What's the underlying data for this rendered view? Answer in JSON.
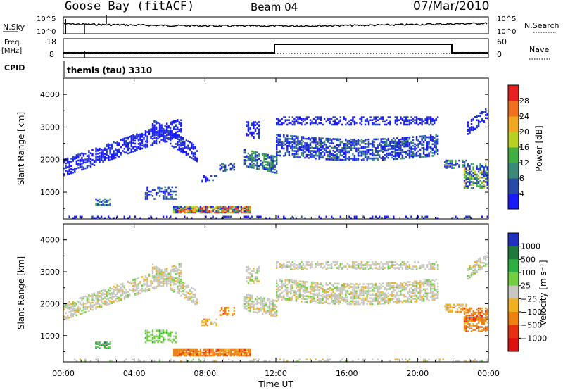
{
  "header": {
    "station": "Goose Bay (fitACF)",
    "beam": "Beam 04",
    "date": "07/Mar/2010"
  },
  "noise_panel": {
    "left_label": "N.Sky",
    "right_label": "N.Search",
    "left_ticks": [
      "10^5",
      "10^0"
    ],
    "right_ticks": [
      "10^5",
      "10^0"
    ]
  },
  "freq_panel": {
    "left_label_1": "Freq.",
    "left_label_2": "[MHz]",
    "right_label": "Nave",
    "left_ticks": [
      "18",
      "8"
    ],
    "right_ticks": [
      "60",
      "0"
    ]
  },
  "cpid_panel": {
    "label": "CPID",
    "program": "themis (tau) 3310"
  },
  "chart_data": [
    {
      "type": "heatmap",
      "name": "power",
      "ylabel": "Slant Range [km]",
      "yticks": [
        1000,
        2000,
        3000,
        4000
      ],
      "ylim": [
        180,
        4500
      ],
      "colorbar_label": "Power [dB]",
      "colorbar_ticks": [
        "4",
        "8",
        "12",
        "16",
        "20",
        "24",
        "28"
      ],
      "colors": [
        "#1a1aff",
        "#264ca8",
        "#3a8a7a",
        "#3fb040",
        "#b8d020",
        "#f0a820",
        "#f07020",
        "#e82020"
      ]
    },
    {
      "type": "heatmap",
      "name": "velocity",
      "ylabel": "Slant Range [km]",
      "yticks": [
        1000,
        2000,
        3000,
        4000
      ],
      "ylim": [
        180,
        4500
      ],
      "xlabel": "Time UT",
      "xticks": [
        "00:00",
        "04:00",
        "08:00",
        "12:00",
        "16:00",
        "20:00",
        "00:00"
      ],
      "colorbar_label": "Velocity [m s⁻¹]",
      "colorbar_ticks": [
        "1000",
        "500",
        "100",
        "25",
        "−25",
        "−100",
        "−500",
        "−1000"
      ],
      "colors": [
        "#2030c0",
        "#1e7a3a",
        "#2eb040",
        "#70d040",
        "#c8c8c0",
        "#f0b020",
        "#f08010",
        "#e83010",
        "#e01010"
      ]
    }
  ]
}
